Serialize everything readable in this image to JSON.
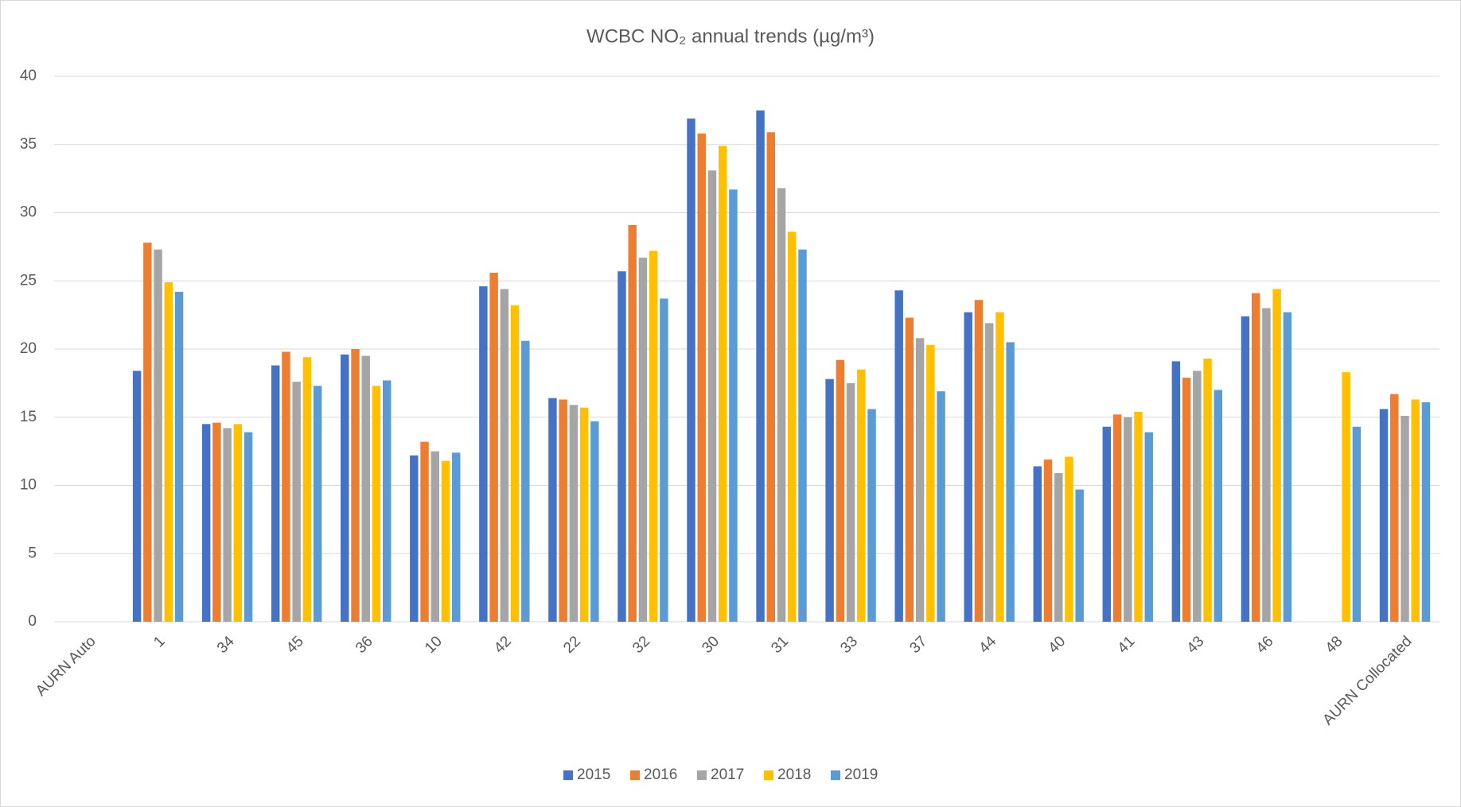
{
  "chart_data": {
    "type": "bar",
    "title": "WCBC NO₂ annual trends (µg/m³)",
    "categories": [
      "AURN Auto",
      "1",
      "34",
      "45",
      "36",
      "10",
      "42",
      "22",
      "32",
      "30",
      "31",
      "33",
      "37",
      "44",
      "40",
      "41",
      "43",
      "46",
      "48",
      "AURN Collocated"
    ],
    "series": [
      {
        "name": "2015",
        "color": "#4472c4",
        "values": [
          null,
          18.4,
          14.5,
          18.8,
          19.6,
          12.2,
          24.6,
          16.4,
          25.7,
          36.9,
          37.5,
          17.8,
          24.3,
          22.7,
          11.4,
          14.3,
          19.1,
          22.4,
          null,
          15.6
        ]
      },
      {
        "name": "2016",
        "color": "#ed7d31",
        "values": [
          null,
          27.8,
          14.6,
          19.8,
          20.0,
          13.2,
          25.6,
          16.3,
          29.1,
          35.8,
          35.9,
          19.2,
          22.3,
          23.6,
          11.9,
          15.2,
          17.9,
          24.1,
          null,
          16.7
        ]
      },
      {
        "name": "2017",
        "color": "#a5a5a5",
        "values": [
          null,
          27.3,
          14.2,
          17.6,
          19.5,
          12.5,
          24.4,
          15.9,
          26.7,
          33.1,
          31.8,
          17.5,
          20.8,
          21.9,
          10.9,
          15.0,
          18.4,
          23.0,
          null,
          15.1
        ]
      },
      {
        "name": "2018",
        "color": "#ffc000",
        "values": [
          null,
          24.9,
          14.5,
          19.4,
          17.3,
          11.8,
          23.2,
          15.7,
          27.2,
          34.9,
          28.6,
          18.5,
          20.3,
          22.7,
          12.1,
          15.4,
          19.3,
          24.4,
          18.3,
          16.3
        ]
      },
      {
        "name": "2019",
        "color": "#5b9bd5",
        "values": [
          null,
          24.2,
          13.9,
          17.3,
          17.7,
          12.4,
          20.6,
          14.7,
          23.7,
          31.7,
          27.3,
          15.6,
          16.9,
          20.5,
          9.7,
          13.9,
          17.0,
          22.7,
          14.3,
          16.1
        ]
      }
    ],
    "ylim": [
      0,
      40
    ],
    "yticks": [
      0,
      5,
      10,
      15,
      20,
      25,
      30,
      35,
      40
    ],
    "grid": true,
    "legend": "bottom"
  }
}
